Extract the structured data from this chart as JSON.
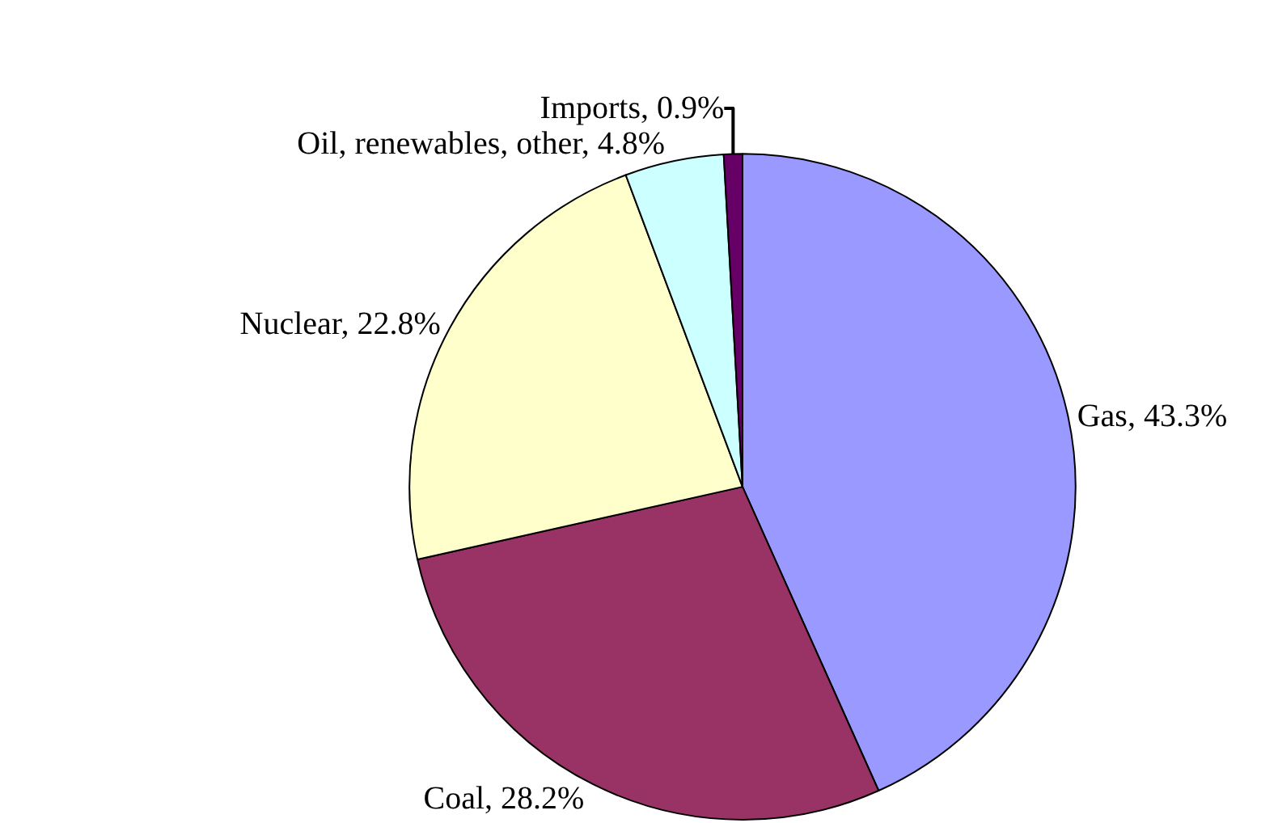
{
  "chart_data": {
    "type": "pie",
    "categories": [
      "Gas",
      "Coal",
      "Nuclear",
      "Oil, renewables, other",
      "Imports"
    ],
    "values": [
      43.3,
      28.2,
      22.8,
      4.8,
      0.9
    ],
    "value_labels": [
      "43.3%",
      "28.2%",
      "22.8%",
      "4.8%",
      "0.9%"
    ],
    "colors": [
      "#9999ff",
      "#993366",
      "#ffffcc",
      "#ccffff",
      "#660066"
    ],
    "legend": false
  }
}
